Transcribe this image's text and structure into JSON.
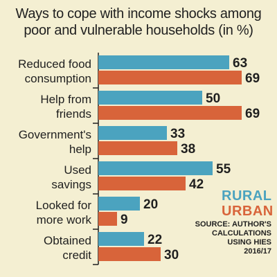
{
  "title_line1": "Ways to cope with income shocks among",
  "title_line2": "poor and vulnerable households (in %)",
  "legend": {
    "rural": "RURAL",
    "urban": "URBAN"
  },
  "source_line1": "SOURCE: AUTHOR'S",
  "source_line2": "CALCULATIONS",
  "source_line3": "USING HIES",
  "source_line4": "2016/17",
  "colors": {
    "rural": "#4ba3bf",
    "urban": "#d8643a",
    "background": "#f4efd2"
  },
  "chart_data": {
    "type": "bar",
    "orientation": "horizontal",
    "title": "Ways to cope with income shocks among poor and vulnerable households (in %)",
    "categories": [
      [
        "Reduced food",
        "consumption"
      ],
      [
        "Help from",
        "friends"
      ],
      [
        "Government's",
        "help"
      ],
      [
        "Used",
        "savings"
      ],
      [
        "Looked for",
        "more work"
      ],
      [
        "Obtained",
        "credit"
      ]
    ],
    "series": [
      {
        "name": "RURAL",
        "values": [
          63,
          50,
          33,
          55,
          20,
          22
        ]
      },
      {
        "name": "URBAN",
        "values": [
          69,
          69,
          38,
          42,
          9,
          30
        ]
      }
    ],
    "data_labels": true,
    "grid": false,
    "legend_position": "right"
  }
}
